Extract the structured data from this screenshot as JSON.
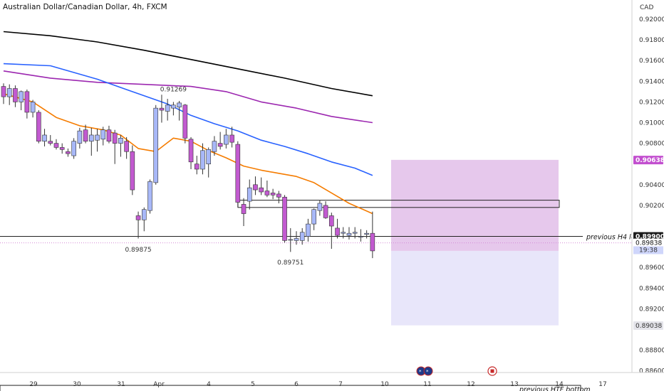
{
  "chart_data": {
    "type": "candlestick",
    "title": "Australian Dollar/Canadian Dollar, 4h, FXCM",
    "currency": "CAD",
    "ylim": [
      0.8855,
      0.9225
    ],
    "yticks": [
      "0.92000",
      "0.91800",
      "0.91600",
      "0.91400",
      "0.91200",
      "0.91000",
      "0.90800",
      "0.90400",
      "0.90200",
      "0.89600",
      "0.89400",
      "0.89200",
      "0.88800",
      "0.88600"
    ],
    "xticks": [
      "29",
      "30",
      "31",
      "Apr",
      "4",
      "5",
      "6",
      "7",
      "10",
      "11",
      "12",
      "13",
      "14",
      "17"
    ],
    "candles": [
      {
        "o": 0.9135,
        "h": 0.9138,
        "l": 0.9118,
        "c": 0.9125
      },
      {
        "o": 0.9125,
        "h": 0.9137,
        "l": 0.9117,
        "c": 0.9133
      },
      {
        "o": 0.9133,
        "h": 0.9136,
        "l": 0.9115,
        "c": 0.912
      },
      {
        "o": 0.912,
        "h": 0.9131,
        "l": 0.9112,
        "c": 0.913
      },
      {
        "o": 0.913,
        "h": 0.9132,
        "l": 0.9104,
        "c": 0.911
      },
      {
        "o": 0.911,
        "h": 0.9122,
        "l": 0.9105,
        "c": 0.912
      },
      {
        "o": 0.911,
        "h": 0.9112,
        "l": 0.908,
        "c": 0.9082
      },
      {
        "o": 0.9082,
        "h": 0.9094,
        "l": 0.9077,
        "c": 0.9088
      },
      {
        "o": 0.9082,
        "h": 0.9088,
        "l": 0.9078,
        "c": 0.908
      },
      {
        "o": 0.908,
        "h": 0.9084,
        "l": 0.9074,
        "c": 0.9076
      },
      {
        "o": 0.9076,
        "h": 0.908,
        "l": 0.907,
        "c": 0.9074
      },
      {
        "o": 0.9072,
        "h": 0.9075,
        "l": 0.9067,
        "c": 0.907
      },
      {
        "o": 0.9068,
        "h": 0.9085,
        "l": 0.9065,
        "c": 0.9082
      },
      {
        "o": 0.908,
        "h": 0.9095,
        "l": 0.9075,
        "c": 0.9092
      },
      {
        "o": 0.9093,
        "h": 0.9098,
        "l": 0.908,
        "c": 0.9082
      },
      {
        "o": 0.9082,
        "h": 0.9095,
        "l": 0.9068,
        "c": 0.9088
      },
      {
        "o": 0.9083,
        "h": 0.9094,
        "l": 0.9072,
        "c": 0.9088
      },
      {
        "o": 0.9084,
        "h": 0.9096,
        "l": 0.9078,
        "c": 0.9093
      },
      {
        "o": 0.9093,
        "h": 0.9097,
        "l": 0.908,
        "c": 0.9082
      },
      {
        "o": 0.909,
        "h": 0.9093,
        "l": 0.906,
        "c": 0.908
      },
      {
        "o": 0.908,
        "h": 0.9088,
        "l": 0.9067,
        "c": 0.9085
      },
      {
        "o": 0.9082,
        "h": 0.9086,
        "l": 0.9065,
        "c": 0.9072
      },
      {
        "o": 0.9072,
        "h": 0.9078,
        "l": 0.903,
        "c": 0.9035
      },
      {
        "o": 0.901,
        "h": 0.9014,
        "l": 0.8988,
        "c": 0.9006
      },
      {
        "o": 0.9006,
        "h": 0.9018,
        "l": 0.8995,
        "c": 0.9016
      },
      {
        "o": 0.9015,
        "h": 0.9045,
        "l": 0.9012,
        "c": 0.9043
      },
      {
        "o": 0.9042,
        "h": 0.9117,
        "l": 0.904,
        "c": 0.9114
      },
      {
        "o": 0.9114,
        "h": 0.9127,
        "l": 0.91,
        "c": 0.9112
      },
      {
        "o": 0.9111,
        "h": 0.9123,
        "l": 0.9102,
        "c": 0.9117
      },
      {
        "o": 0.9114,
        "h": 0.912,
        "l": 0.9107,
        "c": 0.9117
      },
      {
        "o": 0.9115,
        "h": 0.9121,
        "l": 0.9102,
        "c": 0.9119
      },
      {
        "o": 0.9117,
        "h": 0.9118,
        "l": 0.908,
        "c": 0.9085
      },
      {
        "o": 0.9084,
        "h": 0.9086,
        "l": 0.9055,
        "c": 0.9062
      },
      {
        "o": 0.906,
        "h": 0.9068,
        "l": 0.905,
        "c": 0.9055
      },
      {
        "o": 0.9055,
        "h": 0.908,
        "l": 0.905,
        "c": 0.9073
      },
      {
        "o": 0.906,
        "h": 0.9076,
        "l": 0.9047,
        "c": 0.9074
      },
      {
        "o": 0.9072,
        "h": 0.9087,
        "l": 0.9068,
        "c": 0.9082
      },
      {
        "o": 0.908,
        "h": 0.9091,
        "l": 0.9074,
        "c": 0.9077
      },
      {
        "o": 0.9079,
        "h": 0.9094,
        "l": 0.9075,
        "c": 0.9088
      },
      {
        "o": 0.9088,
        "h": 0.9096,
        "l": 0.9076,
        "c": 0.9081
      },
      {
        "o": 0.9079,
        "h": 0.9082,
        "l": 0.9018,
        "c": 0.9023
      },
      {
        "o": 0.9021,
        "h": 0.9027,
        "l": 0.9,
        "c": 0.9012
      },
      {
        "o": 0.9024,
        "h": 0.9045,
        "l": 0.9016,
        "c": 0.9037
      },
      {
        "o": 0.904,
        "h": 0.9048,
        "l": 0.903,
        "c": 0.9035
      },
      {
        "o": 0.9037,
        "h": 0.9047,
        "l": 0.903,
        "c": 0.9033
      },
      {
        "o": 0.9034,
        "h": 0.9044,
        "l": 0.9028,
        "c": 0.903
      },
      {
        "o": 0.9032,
        "h": 0.9036,
        "l": 0.9026,
        "c": 0.903
      },
      {
        "o": 0.9031,
        "h": 0.9034,
        "l": 0.9022,
        "c": 0.9028
      },
      {
        "o": 0.9028,
        "h": 0.903,
        "l": 0.8984,
        "c": 0.8986
      },
      {
        "o": 0.8987,
        "h": 0.8998,
        "l": 0.8975,
        "c": 0.8987
      },
      {
        "o": 0.8986,
        "h": 0.8995,
        "l": 0.8982,
        "c": 0.8988
      },
      {
        "o": 0.8986,
        "h": 0.8998,
        "l": 0.8982,
        "c": 0.8994
      },
      {
        "o": 0.899,
        "h": 0.9007,
        "l": 0.8985,
        "c": 0.9002
      },
      {
        "o": 0.9002,
        "h": 0.9017,
        "l": 0.8996,
        "c": 0.9016
      },
      {
        "o": 0.9015,
        "h": 0.9025,
        "l": 0.901,
        "c": 0.9022
      },
      {
        "o": 0.902,
        "h": 0.9024,
        "l": 0.9007,
        "c": 0.9008
      },
      {
        "o": 0.901,
        "h": 0.9013,
        "l": 0.8978,
        "c": 0.9
      },
      {
        "o": 0.8998,
        "h": 0.9007,
        "l": 0.8988,
        "c": 0.8991
      },
      {
        "o": 0.8993,
        "h": 0.8999,
        "l": 0.8988,
        "c": 0.8994
      },
      {
        "o": 0.8991,
        "h": 0.8999,
        "l": 0.8987,
        "c": 0.8993
      },
      {
        "o": 0.8993,
        "h": 0.8999,
        "l": 0.8988,
        "c": 0.8994
      },
      {
        "o": 0.899,
        "h": 0.8997,
        "l": 0.8985,
        "c": 0.899
      },
      {
        "o": 0.8992,
        "h": 0.8996,
        "l": 0.8988,
        "c": 0.8993
      },
      {
        "o": 0.8993,
        "h": 0.9014,
        "l": 0.8969,
        "c": 0.8976
      }
    ],
    "moving_averages": [
      {
        "color": "#000000",
        "points": [
          [
            0,
            0.9188
          ],
          [
            8,
            0.9184
          ],
          [
            16,
            0.9178
          ],
          [
            24,
            0.917
          ],
          [
            32,
            0.9161
          ],
          [
            40,
            0.9152
          ],
          [
            48,
            0.9143
          ],
          [
            56,
            0.9133
          ],
          [
            63,
            0.9126
          ]
        ]
      },
      {
        "color": "#9c27b0",
        "points": [
          [
            0,
            0.915
          ],
          [
            8,
            0.9143
          ],
          [
            16,
            0.9139
          ],
          [
            24,
            0.9137
          ],
          [
            32,
            0.9135
          ],
          [
            38,
            0.913
          ],
          [
            44,
            0.912
          ],
          [
            50,
            0.9114
          ],
          [
            56,
            0.9106
          ],
          [
            63,
            0.91
          ]
        ]
      },
      {
        "color": "#2962ff",
        "points": [
          [
            0,
            0.9157
          ],
          [
            8,
            0.9155
          ],
          [
            16,
            0.9142
          ],
          [
            22,
            0.913
          ],
          [
            28,
            0.9118
          ],
          [
            32,
            0.9107
          ],
          [
            36,
            0.9099
          ],
          [
            40,
            0.9092
          ],
          [
            44,
            0.9083
          ],
          [
            48,
            0.9077
          ],
          [
            52,
            0.907
          ],
          [
            56,
            0.9062
          ],
          [
            60,
            0.9056
          ],
          [
            63,
            0.9049
          ]
        ]
      },
      {
        "color": "#f57c00",
        "points": [
          [
            0,
            0.9128
          ],
          [
            5,
            0.912
          ],
          [
            9,
            0.9105
          ],
          [
            13,
            0.9097
          ],
          [
            17,
            0.9093
          ],
          [
            20,
            0.9088
          ],
          [
            23,
            0.9075
          ],
          [
            26,
            0.9072
          ],
          [
            29,
            0.9085
          ],
          [
            32,
            0.9082
          ],
          [
            35,
            0.9073
          ],
          [
            38,
            0.9066
          ],
          [
            41,
            0.9058
          ],
          [
            44,
            0.9054
          ],
          [
            47,
            0.9051
          ],
          [
            50,
            0.9048
          ],
          [
            53,
            0.9042
          ],
          [
            56,
            0.9032
          ],
          [
            59,
            0.9022
          ],
          [
            63,
            0.9012
          ]
        ]
      }
    ],
    "annotations": [
      {
        "text": "0.91269",
        "price": 0.91269,
        "index": 29,
        "pos": "above"
      },
      {
        "text": "0.89875",
        "price": 0.89875,
        "index": 23,
        "pos": "below"
      },
      {
        "text": "0.89751",
        "price": 0.89751,
        "index": 49,
        "pos": "below"
      },
      {
        "text": "previous H4 low",
        "price": 0.899
      },
      {
        "text": "previous HTF bottom",
        "price": 0.8842
      }
    ],
    "zone_box": {
      "top": 0.9025,
      "bottom": 0.9018
    },
    "position_box": {
      "tp": 0.9064,
      "entry": 0.8976,
      "sl": 0.8904
    },
    "price_labels": [
      {
        "text": "0.90638",
        "price": 0.90638,
        "style": "purple"
      },
      {
        "text": "0.89900",
        "price": 0.899,
        "style": "dark"
      },
      {
        "text": "0.89838",
        "price": 0.89838,
        "style": "pinkline"
      },
      {
        "text": "19:38",
        "price": 0.8977,
        "style": "countdown"
      },
      {
        "text": "0.89038",
        "price": 0.89038,
        "style": "grey"
      }
    ],
    "colors": {
      "bull": "#a8b8f8",
      "bear": "#c25ad0",
      "wick": "#333333",
      "tp_fill": "#e6c8ec",
      "sl_fill": "#e8e6fa"
    }
  }
}
